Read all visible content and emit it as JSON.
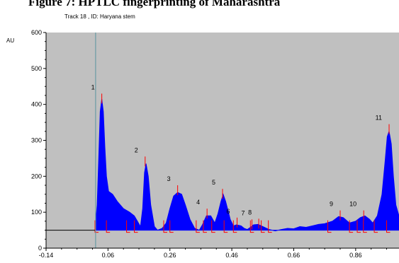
{
  "heading": "Figure 7: HPTLC fingerprinting of Maharashtra",
  "chart_data": {
    "type": "area",
    "title": "Track  18 , ID: Haryana stem",
    "ylabel": "AU",
    "xlabel": "",
    "xlim": [
      -0.14,
      1.0
    ],
    "ylim": [
      0,
      600
    ],
    "xticks": [
      "-0.14",
      "0.06",
      "0.26",
      "0.46",
      "0.66",
      "0.86"
    ],
    "yticks": [
      "0",
      "100",
      "200",
      "300",
      "400",
      "500",
      "600"
    ],
    "grid": false,
    "colors": {
      "plot_bg": "#c0c0c0",
      "fill": "#0000ff",
      "marker": "#ff0000",
      "baseline": "#000000",
      "start_line": "#6a9aa4"
    },
    "start_line_x": 0.02,
    "baseline_y": 50,
    "peaks": [
      {
        "label": "1",
        "rf": 0.04,
        "height": 430
      },
      {
        "label": "2",
        "rf": 0.18,
        "height": 255
      },
      {
        "label": "3",
        "rf": 0.285,
        "height": 175
      },
      {
        "label": "4",
        "rf": 0.38,
        "height": 110
      },
      {
        "label": "5",
        "rf": 0.43,
        "height": 165
      },
      {
        "label": "6",
        "rf": 0.477,
        "height": 85
      },
      {
        "label": "7",
        "rf": 0.525,
        "height": 80
      },
      {
        "label": "8",
        "rf": 0.547,
        "height": 82
      },
      {
        "label": "9",
        "rf": 0.81,
        "height": 105
      },
      {
        "label": "10",
        "rf": 0.886,
        "height": 105
      },
      {
        "label": "11",
        "rf": 0.968,
        "height": 345
      }
    ],
    "trace": [
      [
        0.018,
        50
      ],
      [
        0.025,
        120
      ],
      [
        0.03,
        250
      ],
      [
        0.035,
        380
      ],
      [
        0.04,
        415
      ],
      [
        0.045,
        380
      ],
      [
        0.05,
        280
      ],
      [
        0.055,
        200
      ],
      [
        0.062,
        158
      ],
      [
        0.075,
        150
      ],
      [
        0.09,
        130
      ],
      [
        0.11,
        110
      ],
      [
        0.13,
        100
      ],
      [
        0.145,
        90
      ],
      [
        0.155,
        75
      ],
      [
        0.165,
        60
      ],
      [
        0.172,
        110
      ],
      [
        0.178,
        210
      ],
      [
        0.183,
        235
      ],
      [
        0.19,
        200
      ],
      [
        0.198,
        120
      ],
      [
        0.21,
        60
      ],
      [
        0.22,
        50
      ],
      [
        0.235,
        55
      ],
      [
        0.248,
        70
      ],
      [
        0.26,
        110
      ],
      [
        0.272,
        145
      ],
      [
        0.285,
        155
      ],
      [
        0.298,
        150
      ],
      [
        0.31,
        120
      ],
      [
        0.325,
        80
      ],
      [
        0.34,
        55
      ],
      [
        0.355,
        50
      ],
      [
        0.365,
        65
      ],
      [
        0.378,
        90
      ],
      [
        0.392,
        90
      ],
      [
        0.405,
        70
      ],
      [
        0.415,
        95
      ],
      [
        0.425,
        130
      ],
      [
        0.432,
        150
      ],
      [
        0.44,
        130
      ],
      [
        0.455,
        80
      ],
      [
        0.465,
        62
      ],
      [
        0.475,
        65
      ],
      [
        0.49,
        62
      ],
      [
        0.5,
        55
      ],
      [
        0.51,
        52
      ],
      [
        0.52,
        58
      ],
      [
        0.53,
        65
      ],
      [
        0.545,
        66
      ],
      [
        0.56,
        60
      ],
      [
        0.58,
        52
      ],
      [
        0.6,
        48
      ],
      [
        0.62,
        52
      ],
      [
        0.64,
        55
      ],
      [
        0.66,
        54
      ],
      [
        0.68,
        60
      ],
      [
        0.7,
        58
      ],
      [
        0.72,
        62
      ],
      [
        0.74,
        66
      ],
      [
        0.76,
        68
      ],
      [
        0.785,
        75
      ],
      [
        0.805,
        88
      ],
      [
        0.82,
        85
      ],
      [
        0.84,
        70
      ],
      [
        0.86,
        75
      ],
      [
        0.875,
        85
      ],
      [
        0.89,
        90
      ],
      [
        0.905,
        80
      ],
      [
        0.915,
        70
      ],
      [
        0.93,
        90
      ],
      [
        0.945,
        150
      ],
      [
        0.955,
        240
      ],
      [
        0.962,
        310
      ],
      [
        0.968,
        325
      ],
      [
        0.975,
        290
      ],
      [
        0.982,
        200
      ],
      [
        0.99,
        120
      ],
      [
        1.0,
        90
      ]
    ],
    "marks": [
      0.018,
      0.055,
      0.12,
      0.145,
      0.24,
      0.26,
      0.345,
      0.368,
      0.395,
      0.435,
      0.465,
      0.52,
      0.555,
      0.578,
      0.77,
      0.84,
      0.865,
      0.885,
      0.92,
      0.96
    ]
  }
}
